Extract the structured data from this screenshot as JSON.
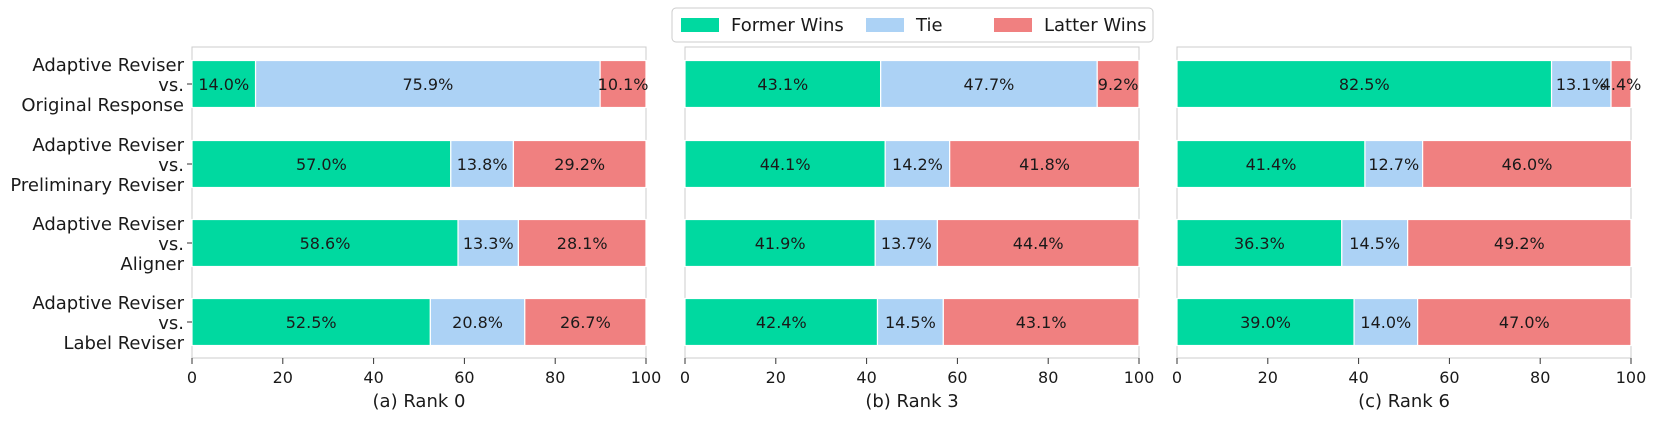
{
  "chart_data": {
    "type": "bar",
    "orientation": "horizontal",
    "stacked": true,
    "legend": {
      "placement": "top-center",
      "entries": [
        "Former Wins",
        "Tie",
        "Latter Wins"
      ]
    },
    "series_colors": {
      "Former Wins": "#00d9a0",
      "Tie": "#acd2f5",
      "Latter Wins": "#f08080"
    },
    "categories": [
      [
        "Adaptive Reviser",
        "vs.",
        "Original Response"
      ],
      [
        "Adaptive Reviser",
        "vs.",
        "Preliminary Reviser"
      ],
      [
        "Adaptive Reviser",
        "vs.",
        "Aligner"
      ],
      [
        "Adaptive Reviser",
        "vs.",
        "Label Reviser"
      ]
    ],
    "xlim": [
      0,
      100
    ],
    "xticks": [
      "0",
      "20",
      "40",
      "60",
      "80",
      "100"
    ],
    "grid": false,
    "panels": [
      {
        "title": "(a) Rank 0",
        "series": [
          {
            "name": "Former Wins",
            "values": [
              14.0,
              57.0,
              58.6,
              52.5
            ]
          },
          {
            "name": "Tie",
            "values": [
              75.9,
              13.8,
              13.3,
              20.8
            ]
          },
          {
            "name": "Latter Wins",
            "values": [
              10.1,
              29.2,
              28.1,
              26.7
            ]
          }
        ],
        "labels": [
          [
            "14.0%",
            "75.9%",
            "10.1%"
          ],
          [
            "57.0%",
            "13.8%",
            "29.2%"
          ],
          [
            "58.6%",
            "13.3%",
            "28.1%"
          ],
          [
            "52.5%",
            "20.8%",
            "26.7%"
          ]
        ]
      },
      {
        "title": "(b) Rank 3",
        "series": [
          {
            "name": "Former Wins",
            "values": [
              43.1,
              44.1,
              41.9,
              42.4
            ]
          },
          {
            "name": "Tie",
            "values": [
              47.7,
              14.2,
              13.7,
              14.5
            ]
          },
          {
            "name": "Latter Wins",
            "values": [
              9.2,
              41.8,
              44.4,
              43.1
            ]
          }
        ],
        "labels": [
          [
            "43.1%",
            "47.7%",
            "9.2%"
          ],
          [
            "44.1%",
            "14.2%",
            "41.8%"
          ],
          [
            "41.9%",
            "13.7%",
            "44.4%"
          ],
          [
            "42.4%",
            "14.5%",
            "43.1%"
          ]
        ]
      },
      {
        "title": "(c) Rank 6",
        "series": [
          {
            "name": "Former Wins",
            "values": [
              82.5,
              41.4,
              36.3,
              39.0
            ]
          },
          {
            "name": "Tie",
            "values": [
              13.1,
              12.7,
              14.5,
              14.0
            ]
          },
          {
            "name": "Latter Wins",
            "values": [
              4.4,
              46.0,
              49.2,
              47.0
            ]
          }
        ],
        "labels": [
          [
            "82.5%",
            "13.1%",
            "4.4%"
          ],
          [
            "41.4%",
            "12.7%",
            "46.0%"
          ],
          [
            "36.3%",
            "14.5%",
            "49.2%"
          ],
          [
            "39.0%",
            "14.0%",
            "47.0%"
          ]
        ]
      }
    ]
  }
}
